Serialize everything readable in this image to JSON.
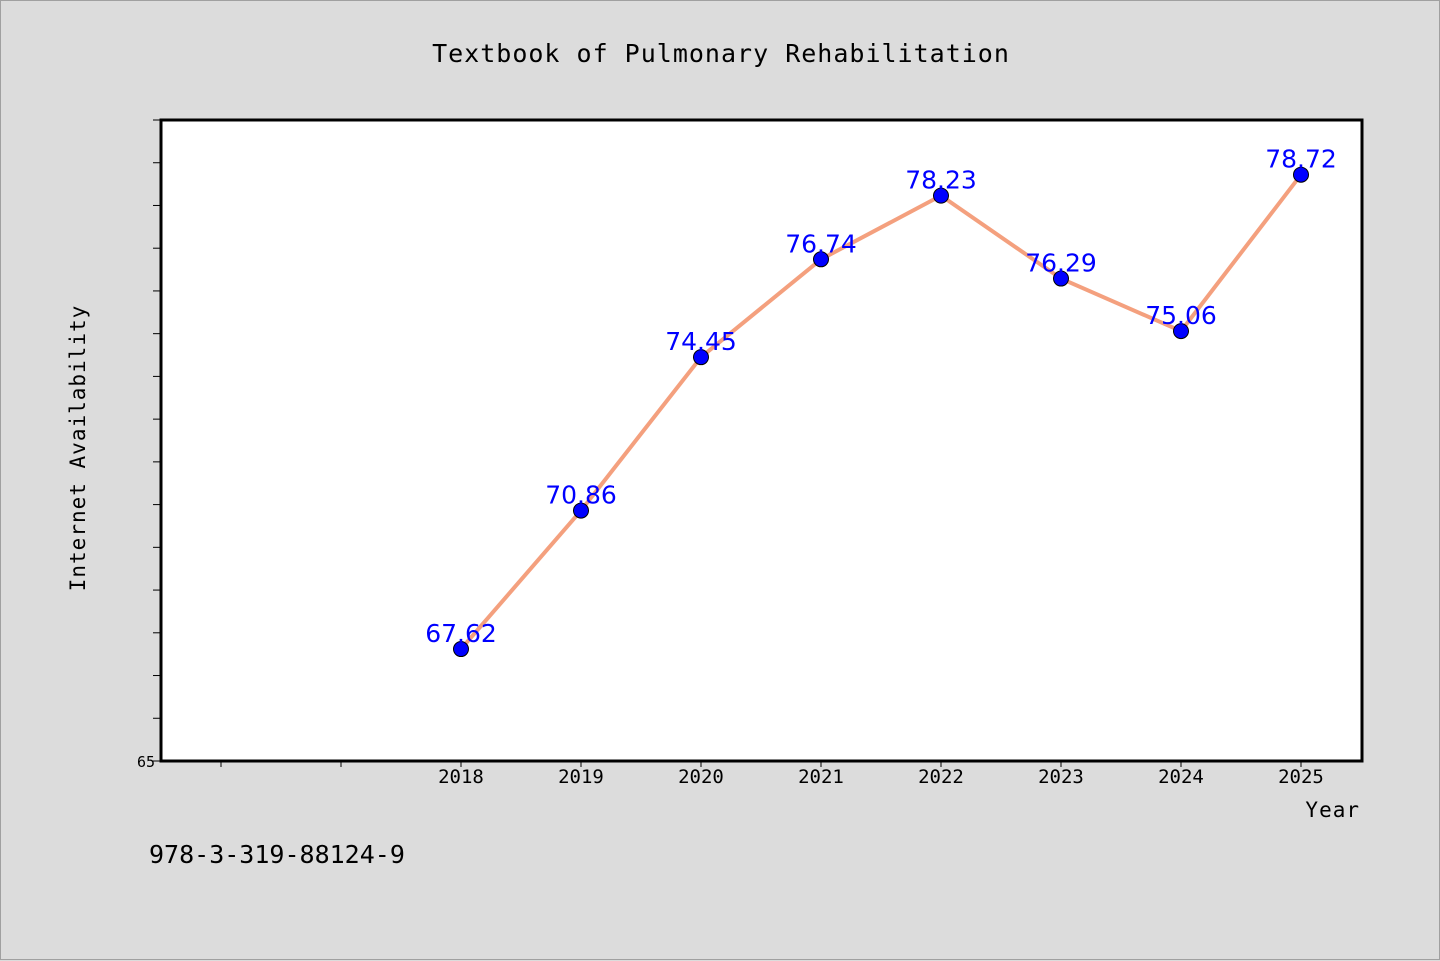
{
  "colors": {
    "background": "#dcdcdc",
    "plot_background": "#ffffff",
    "line": "#f4a07e",
    "marker": "#0000ff",
    "data_label": "#0000ff"
  },
  "footer": {
    "isbn": "978-3-319-88124-9"
  },
  "chart_data": {
    "type": "line",
    "title": "Textbook of Pulmonary Rehabilitation",
    "xlabel": "Year",
    "ylabel": "Internet Availability",
    "categories": [
      "2018",
      "2019",
      "2020",
      "2021",
      "2022",
      "2023",
      "2024",
      "2025"
    ],
    "series": [
      {
        "values": [
          67.62,
          70.86,
          74.45,
          76.74,
          78.23,
          76.29,
          75.06,
          78.72
        ]
      }
    ],
    "data_labels": [
      "67.62",
      "70.86",
      "74.45",
      "76.74",
      "78.23",
      "76.29",
      "75.06",
      "78.72"
    ],
    "ylim": [
      65,
      80
    ],
    "y_tick_labels": [
      {
        "value": 65,
        "label": "65"
      }
    ],
    "y_minor_step": 1,
    "x_extra_ticks_before": 2,
    "grid": false,
    "legend": "none"
  }
}
